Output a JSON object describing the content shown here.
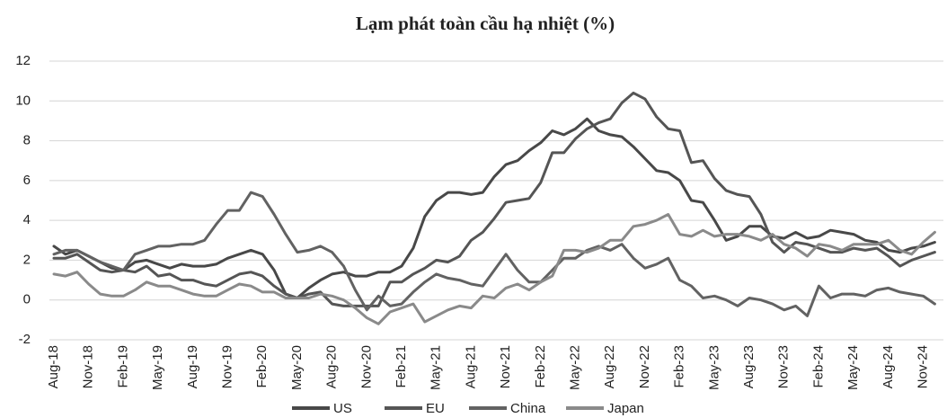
{
  "chart_data": {
    "type": "line",
    "title": "Lạm phát toàn cầu hạ nhiệt (%)",
    "categories": [
      "Aug-18",
      null,
      null,
      "Nov-18",
      null,
      null,
      "Feb-19",
      null,
      null,
      "May-19",
      null,
      null,
      "Aug-19",
      null,
      null,
      "Nov-19",
      null,
      null,
      "Feb-20",
      null,
      null,
      "May-20",
      null,
      null,
      "Aug-20",
      null,
      null,
      "Nov-20",
      null,
      null,
      "Feb-21",
      null,
      null,
      "May-21",
      null,
      null,
      "Aug-21",
      null,
      null,
      "Nov-21",
      null,
      null,
      "Feb-22",
      null,
      null,
      "May-22",
      null,
      null,
      "Aug-22",
      null,
      null,
      "Nov-22",
      null,
      null,
      "Feb-23",
      null,
      null,
      "May-23",
      null,
      null,
      "Aug-23",
      null,
      null,
      "Nov-23",
      null,
      null,
      "Feb-24",
      null,
      null,
      "May-24",
      null,
      null,
      "Aug-24",
      null,
      null,
      "Nov-24",
      null
    ],
    "series": [
      {
        "name": "US",
        "color": "#484848",
        "values": [
          2.7,
          2.3,
          2.5,
          2.2,
          1.9,
          1.6,
          1.5,
          1.9,
          2.0,
          1.8,
          1.6,
          1.8,
          1.7,
          1.7,
          1.8,
          2.1,
          2.3,
          2.5,
          2.3,
          1.5,
          0.3,
          0.1,
          0.6,
          1.0,
          1.3,
          1.4,
          1.2,
          1.2,
          1.4,
          1.4,
          1.7,
          2.6,
          4.2,
          5.0,
          5.4,
          5.4,
          5.3,
          5.4,
          6.2,
          6.8,
          7.0,
          7.5,
          7.9,
          8.5,
          8.3,
          8.6,
          9.1,
          8.5,
          8.3,
          8.2,
          7.7,
          7.1,
          6.5,
          6.4,
          6.0,
          5.0,
          4.9,
          4.0,
          3.0,
          3.2,
          3.7,
          3.7,
          3.2,
          3.1,
          3.4,
          3.1,
          3.2,
          3.5,
          3.4,
          3.3,
          3.0,
          2.9,
          2.5,
          2.4,
          2.6,
          2.7,
          2.9
        ]
      },
      {
        "name": "EU",
        "color": "#555555",
        "values": [
          2.1,
          2.1,
          2.3,
          1.9,
          1.5,
          1.4,
          1.5,
          1.4,
          1.7,
          1.2,
          1.3,
          1.0,
          1.0,
          0.8,
          0.7,
          1.0,
          1.3,
          1.4,
          1.2,
          0.7,
          0.3,
          0.1,
          0.3,
          0.4,
          -0.2,
          -0.3,
          -0.3,
          -0.3,
          -0.3,
          0.9,
          0.9,
          1.3,
          1.6,
          2.0,
          1.9,
          2.2,
          3.0,
          3.4,
          4.1,
          4.9,
          5.0,
          5.1,
          5.9,
          7.4,
          7.4,
          8.1,
          8.6,
          8.9,
          9.1,
          9.9,
          10.4,
          10.1,
          9.2,
          8.6,
          8.5,
          6.9,
          7.0,
          6.1,
          5.5,
          5.3,
          5.2,
          4.3,
          2.9,
          2.4,
          2.9,
          2.8,
          2.6,
          2.4,
          2.4,
          2.6,
          2.5,
          2.6,
          2.2,
          1.7,
          2.0,
          2.2,
          2.4
        ]
      },
      {
        "name": "China",
        "color": "#626262",
        "values": [
          2.3,
          2.5,
          2.5,
          2.2,
          1.9,
          1.7,
          1.5,
          2.3,
          2.5,
          2.7,
          2.7,
          2.8,
          2.8,
          3.0,
          3.8,
          4.5,
          4.5,
          5.4,
          5.2,
          4.3,
          3.3,
          2.4,
          2.5,
          2.7,
          2.4,
          1.7,
          0.5,
          -0.5,
          0.2,
          -0.3,
          -0.2,
          0.4,
          0.9,
          1.3,
          1.1,
          1.0,
          0.8,
          0.7,
          1.5,
          2.3,
          1.5,
          0.9,
          0.9,
          1.5,
          2.1,
          2.1,
          2.5,
          2.7,
          2.5,
          2.8,
          2.1,
          1.6,
          1.8,
          2.1,
          1.0,
          0.7,
          0.1,
          0.2,
          0.0,
          -0.3,
          0.1,
          0.0,
          -0.2,
          -0.5,
          -0.3,
          -0.8,
          0.7,
          0.1,
          0.3,
          0.3,
          0.2,
          0.5,
          0.6,
          0.4,
          0.3,
          0.2,
          -0.2
        ]
      },
      {
        "name": "Japan",
        "color": "#8a8a8a",
        "values": [
          1.3,
          1.2,
          1.4,
          0.8,
          0.3,
          0.2,
          0.2,
          0.5,
          0.9,
          0.7,
          0.7,
          0.5,
          0.3,
          0.2,
          0.2,
          0.5,
          0.8,
          0.7,
          0.4,
          0.4,
          0.1,
          0.1,
          0.1,
          0.3,
          0.2,
          0.0,
          -0.4,
          -0.9,
          -1.2,
          -0.6,
          -0.4,
          -0.2,
          -1.1,
          -0.8,
          -0.5,
          -0.3,
          -0.4,
          0.2,
          0.1,
          0.6,
          0.8,
          0.5,
          0.9,
          1.2,
          2.5,
          2.5,
          2.4,
          2.6,
          3.0,
          3.0,
          3.7,
          3.8,
          4.0,
          4.3,
          3.3,
          3.2,
          3.5,
          3.2,
          3.3,
          3.3,
          3.2,
          3.0,
          3.3,
          2.8,
          2.6,
          2.2,
          2.8,
          2.7,
          2.5,
          2.8,
          2.8,
          2.8,
          3.0,
          2.5,
          2.3,
          2.9,
          3.4
        ]
      }
    ],
    "ylim": [
      -2,
      12
    ],
    "yticks": [
      -2,
      0,
      2,
      4,
      6,
      8,
      10,
      12
    ],
    "grid": true
  }
}
